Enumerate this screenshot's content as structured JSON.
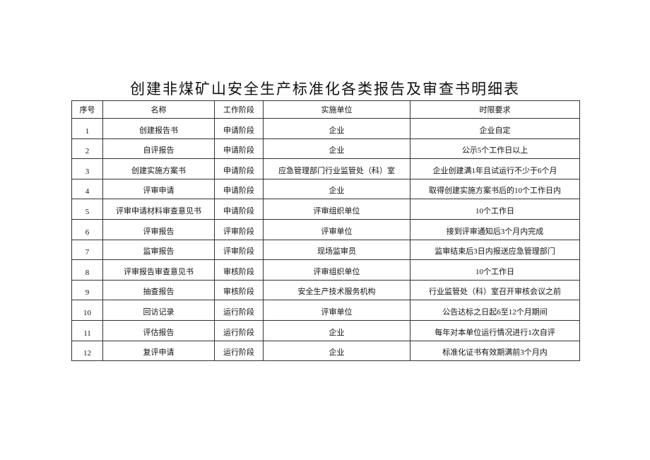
{
  "title": "创建非煤矿山安全生产标准化各类报告及审查书明细表",
  "table": {
    "header": [
      "序号",
      "名称",
      "工作阶段",
      "实施单位",
      "时限要求"
    ],
    "rows": [
      [
        "1",
        "创建报告书",
        "申请阶段",
        "企业",
        "企业自定"
      ],
      [
        "2",
        "自评报告",
        "申请阶段",
        "企业",
        "公示5个工作日以上"
      ],
      [
        "3",
        "创建实施方案书",
        "申请阶段",
        "应急管理部门行业监管处（科）室",
        "企业创建满1年且试运行不少于6个月"
      ],
      [
        "4",
        "评审申请",
        "申请阶段",
        "企业",
        "取得创建实施方案书后的10个工作日内"
      ],
      [
        "5",
        "评审申请材料审查意见书",
        "申请阶段",
        "评审组织单位",
        "10个工作日"
      ],
      [
        "6",
        "评审报告",
        "评审阶段",
        "评审单位",
        "接到评审通知后3个月内完成"
      ],
      [
        "7",
        "监审报告",
        "评审阶段",
        "现场监审员",
        "监审结束后3日内报送应急管理部门"
      ],
      [
        "8",
        "评审报告审查意见书",
        "审核阶段",
        "评审组织单位",
        "10个工作日"
      ],
      [
        "9",
        "抽查报告",
        "审核阶段",
        "安全生产技术服务机构",
        "行业监管处（科）室召开审核会议之前"
      ],
      [
        "10",
        "回访记录",
        "运行阶段",
        "评审单位",
        "公告达标之日起6至12个月期间"
      ],
      [
        "11",
        "评估报告",
        "运行阶段",
        "企业",
        "每年对本单位运行情况进行1次自评"
      ],
      [
        "12",
        "复评申请",
        "运行阶段",
        "企业",
        "标准化证书有效期满前3个月内"
      ]
    ]
  }
}
